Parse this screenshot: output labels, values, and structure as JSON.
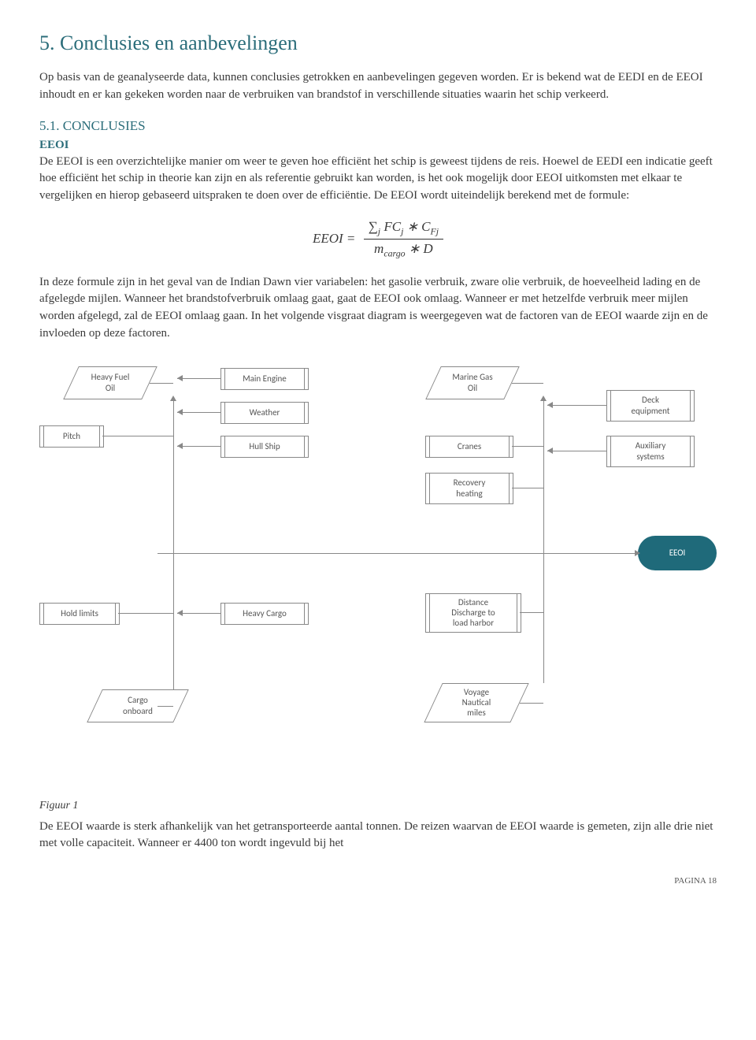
{
  "colors": {
    "heading": "#2b6d7a",
    "text": "#3a3a3a",
    "pill_bg": "#1f6a7a",
    "box_border": "#888888"
  },
  "heading": "5. Conclusies en aanbevelingen",
  "intro": "Op basis van de geanalyseerde data, kunnen conclusies getrokken en aanbevelingen gegeven worden. Er is bekend wat de EEDI en de EEOI inhoudt en er kan gekeken worden naar de verbruiken van brandstof in verschillende situaties waarin het schip verkeerd.",
  "section_num": "5.1. CONCLUSIES",
  "eeoi_label": "EEOI",
  "para1": "De EEOI is een overzichtelijke manier om weer te geven hoe efficiënt het schip is geweest tijdens de reis. Hoewel de EEDI een indicatie geeft hoe efficiënt het schip in theorie kan zijn en als referentie gebruikt kan worden, is het ook mogelijk door EEOI uitkomsten met elkaar te vergelijken en hierop gebaseerd uitspraken te doen over de efficiëntie. De EEOI wordt uiteindelijk berekend met de formule:",
  "formula": {
    "lhs": "EEOI =",
    "num": "∑ⱼ FCⱼ ∗ C_Fj",
    "den": "m_cargo ∗ D"
  },
  "para2": "In deze formule zijn in het geval van de Indian Dawn vier variabelen: het gasolie verbruik, zware olie verbruik, de hoeveelheid lading en de afgelegde mijlen. Wanneer het brandstofverbruik omlaag gaat, gaat de EEOI ook omlaag. Wanneer er met hetzelfde verbruik meer mijlen worden afgelegd, zal de EEOI omlaag gaan. In het volgende visgraat diagram is weergegeven wat de factoren van de EEOI waarde zijn en de invloeden op deze factoren.",
  "diagram": {
    "heavy_fuel_oil": "Heavy Fuel\nOil",
    "pitch": "Pitch",
    "main_engine": "Main Engine",
    "weather": "Weather",
    "hull_ship": "Hull Ship",
    "marine_gas_oil": "Marine Gas\nOil",
    "cranes": "Cranes",
    "recovery_heating": "Recovery\nheating",
    "deck_equipment": "Deck\nequipment",
    "auxiliary_systems": "Auxiliary\nsystems",
    "eeoi": "EEOI",
    "hold_limits": "Hold limits",
    "heavy_cargo": "Heavy Cargo",
    "distance": "Distance\nDischarge to\nload harbor",
    "cargo_onboard": "Cargo\nonboard",
    "voyage_miles": "Voyage\nNautical\nmiles"
  },
  "fig_caption": "Figuur 1",
  "closing": "De EEOI waarde is sterk afhankelijk van het getransporteerde aantal tonnen. De reizen waarvan de EEOI waarde is gemeten, zijn alle drie niet met volle capaciteit. Wanneer er 4400 ton wordt ingevuld bij het",
  "page_label": "PAGINA 18"
}
